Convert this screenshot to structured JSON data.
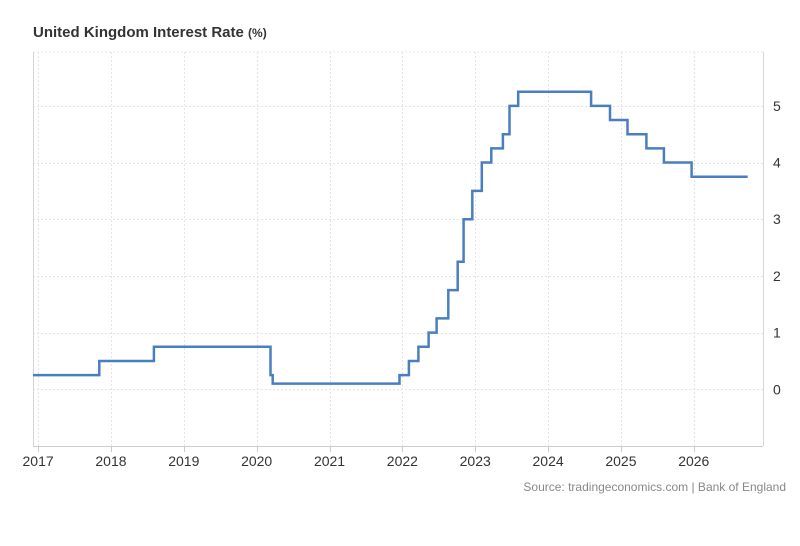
{
  "chart_data": {
    "type": "line",
    "step": true,
    "title": "United Kingdom Interest Rate",
    "unit": "(%)",
    "xlabel": "",
    "ylabel": "",
    "xlim": [
      2016.93,
      2026.95
    ],
    "ylim": [
      -1.0,
      5.95
    ],
    "y_ticks": [
      0,
      1,
      2,
      3,
      4,
      5
    ],
    "x_ticks": [
      "2017",
      "2018",
      "2019",
      "2020",
      "2021",
      "2022",
      "2023",
      "2024",
      "2025",
      "2026"
    ],
    "x_tick_values": [
      2017,
      2018,
      2019,
      2020,
      2021,
      2022,
      2023,
      2024,
      2025,
      2026
    ],
    "y_axis_position": "right",
    "grid": true,
    "line_color": "#4a7fbf",
    "series": [
      {
        "name": "",
        "points": [
          [
            2016.93,
            0.25
          ],
          [
            2017.84,
            0.5
          ],
          [
            2018.59,
            0.75
          ],
          [
            2020.19,
            0.25
          ],
          [
            2020.22,
            0.1
          ],
          [
            2021.96,
            0.25
          ],
          [
            2022.09,
            0.5
          ],
          [
            2022.22,
            0.75
          ],
          [
            2022.36,
            1.0
          ],
          [
            2022.47,
            1.25
          ],
          [
            2022.63,
            1.75
          ],
          [
            2022.76,
            2.25
          ],
          [
            2022.84,
            3.0
          ],
          [
            2022.96,
            3.5
          ],
          [
            2023.09,
            4.0
          ],
          [
            2023.22,
            4.25
          ],
          [
            2023.38,
            4.5
          ],
          [
            2023.47,
            5.0
          ],
          [
            2023.59,
            5.25
          ],
          [
            2024.59,
            5.0
          ],
          [
            2024.85,
            4.75
          ],
          [
            2025.09,
            4.5
          ],
          [
            2025.35,
            4.25
          ],
          [
            2025.59,
            4.0
          ],
          [
            2025.97,
            3.75
          ],
          [
            2026.74,
            3.75
          ]
        ]
      }
    ]
  },
  "source": "Source: tradingeconomics.com | Bank of England"
}
